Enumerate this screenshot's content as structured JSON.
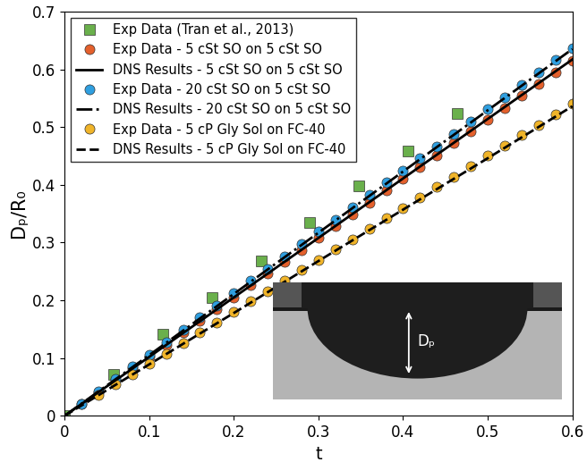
{
  "chart_data": {
    "type": "scatter",
    "x_label": "t",
    "y_label": "Dₚ/R₀",
    "xlim": [
      0,
      0.6
    ],
    "xticks": [
      0,
      0.1,
      0.2,
      0.3,
      0.4,
      0.5,
      0.6
    ],
    "ylim": [
      0,
      0.7
    ],
    "yticks": [
      0,
      0.1,
      0.2,
      0.3,
      0.4,
      0.5,
      0.6,
      0.7
    ],
    "grid": false,
    "legend": "upper left",
    "annotations": [
      {
        "text": "Dₚ"
      }
    ],
    "series": [
      {
        "name": "Exp Data (Tran et al., 2013)",
        "type": "scatter",
        "marker": "square",
        "color": "#6ab04c",
        "x": [
          0,
          0.058,
          0.116,
          0.174,
          0.232,
          0.29,
          0.348,
          0.406,
          0.464
        ],
        "values": [
          0,
          0.072,
          0.142,
          0.205,
          0.268,
          0.335,
          0.398,
          0.458,
          0.523
        ]
      },
      {
        "name": "Exp Data - 5 cSt SO on 5 cSt SO",
        "type": "scatter",
        "marker": "circle",
        "color": "#e4602c",
        "x": [
          0.02,
          0.04,
          0.06,
          0.08,
          0.1,
          0.12,
          0.14,
          0.16,
          0.18,
          0.2,
          0.22,
          0.24,
          0.26,
          0.28,
          0.3,
          0.32,
          0.34,
          0.36,
          0.38,
          0.4,
          0.42,
          0.44,
          0.46,
          0.48,
          0.5,
          0.52,
          0.54,
          0.56,
          0.58,
          0.6
        ],
        "values": [
          0.021,
          0.041,
          0.062,
          0.082,
          0.103,
          0.123,
          0.144,
          0.164,
          0.185,
          0.205,
          0.226,
          0.246,
          0.267,
          0.287,
          0.308,
          0.328,
          0.349,
          0.369,
          0.39,
          0.41,
          0.431,
          0.451,
          0.472,
          0.492,
          0.513,
          0.533,
          0.554,
          0.574,
          0.595,
          0.615
        ]
      },
      {
        "name": "DNS Results - 5 cSt SO on 5 cSt SO",
        "type": "line",
        "line_style": "solid",
        "color": "#000000",
        "x": [
          0,
          0.1,
          0.2,
          0.3,
          0.4,
          0.5,
          0.6
        ],
        "values": [
          0,
          0.102,
          0.205,
          0.308,
          0.411,
          0.514,
          0.617
        ]
      },
      {
        "name": "Exp Data - 20 cSt SO on 5 cSt SO",
        "type": "scatter",
        "marker": "circle",
        "color": "#2f9fe0",
        "x": [
          0.02,
          0.04,
          0.06,
          0.08,
          0.1,
          0.12,
          0.14,
          0.16,
          0.18,
          0.2,
          0.22,
          0.24,
          0.26,
          0.28,
          0.3,
          0.32,
          0.34,
          0.36,
          0.38,
          0.4,
          0.42,
          0.44,
          0.46,
          0.48,
          0.5,
          0.52,
          0.54,
          0.56,
          0.58,
          0.6
        ],
        "values": [
          0.021,
          0.042,
          0.064,
          0.085,
          0.106,
          0.127,
          0.149,
          0.17,
          0.191,
          0.212,
          0.234,
          0.255,
          0.276,
          0.297,
          0.319,
          0.34,
          0.361,
          0.382,
          0.404,
          0.425,
          0.446,
          0.467,
          0.488,
          0.51,
          0.531,
          0.552,
          0.573,
          0.595,
          0.616,
          0.637
        ]
      },
      {
        "name": "DNS Results - 20 cSt SO on 5 cSt SO",
        "type": "line",
        "line_style": "dashdot",
        "color": "#000000",
        "x": [
          0,
          0.1,
          0.2,
          0.3,
          0.4,
          0.5,
          0.6
        ],
        "values": [
          0,
          0.105,
          0.211,
          0.317,
          0.423,
          0.529,
          0.635
        ]
      },
      {
        "name": "Exp Data - 5 cP Gly Sol on FC-40",
        "type": "scatter",
        "marker": "circle",
        "color": "#f0b429",
        "x": [
          0.04,
          0.06,
          0.08,
          0.1,
          0.12,
          0.14,
          0.16,
          0.18,
          0.2,
          0.22,
          0.24,
          0.26,
          0.28,
          0.3,
          0.32,
          0.34,
          0.36,
          0.38,
          0.4,
          0.42,
          0.44,
          0.46,
          0.48,
          0.5,
          0.52,
          0.54,
          0.56,
          0.58,
          0.6
        ],
        "values": [
          0.036,
          0.054,
          0.072,
          0.09,
          0.108,
          0.126,
          0.144,
          0.162,
          0.18,
          0.198,
          0.216,
          0.234,
          0.252,
          0.27,
          0.288,
          0.306,
          0.324,
          0.342,
          0.36,
          0.378,
          0.396,
          0.414,
          0.432,
          0.45,
          0.468,
          0.486,
          0.504,
          0.522,
          0.54
        ]
      },
      {
        "name": "DNS Results - 5 cP Gly Sol on FC-40",
        "type": "line",
        "line_style": "dashed",
        "color": "#000000",
        "x": [
          0,
          0.1,
          0.2,
          0.3,
          0.4,
          0.5,
          0.6
        ],
        "values": [
          0,
          0.089,
          0.178,
          0.268,
          0.357,
          0.446,
          0.536
        ]
      }
    ]
  }
}
